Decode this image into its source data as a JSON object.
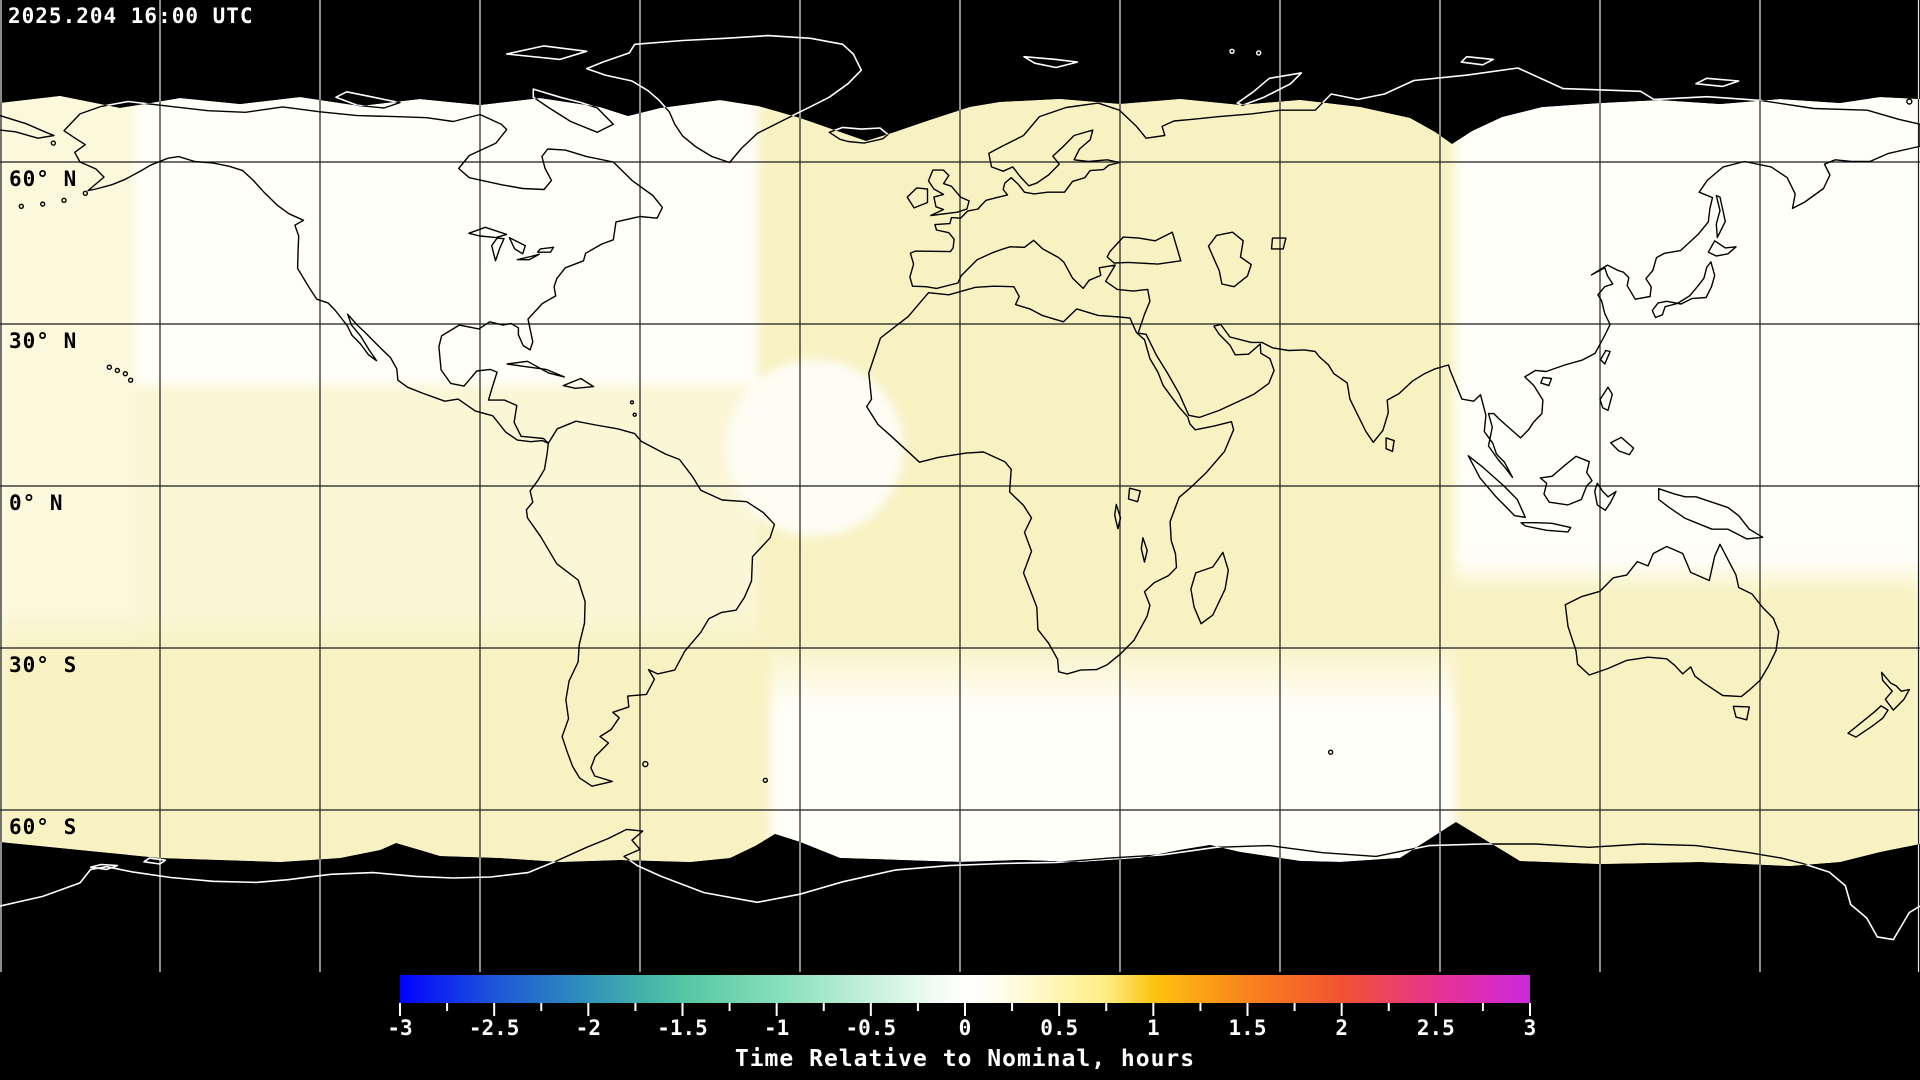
{
  "header": {
    "timestamp": "2025.204 16:00 UTC"
  },
  "map": {
    "projection": "equirectangular",
    "lat_labels": [
      {
        "lat": 60,
        "label": "60° N"
      },
      {
        "lat": 30,
        "label": "30° N"
      },
      {
        "lat": 0,
        "label": "0° N"
      },
      {
        "lat": -30,
        "label": "30° S"
      },
      {
        "lat": -60,
        "label": "60° S"
      }
    ],
    "grid": {
      "lon_step_deg": 30,
      "lat_step_deg": 30
    },
    "colors": {
      "background": "#000000",
      "data_base": "#fffef9",
      "swath_cream": "#f8f2c3",
      "swath_light": "#faf6d6",
      "left_strip": "#fbf8dc",
      "blob_white": "#fefdf4",
      "grid_on_data": "#1c1c1c",
      "grid_on_black": "#e8e8e8",
      "coast_on_data": "#000000",
      "coast_on_black": "#ffffff"
    }
  },
  "colorbar": {
    "title": "Time Relative to Nominal, hours",
    "min": -3,
    "max": 3,
    "major_tick_step": 0.5,
    "minor_tick_step": 0.25,
    "major_tick_labels": [
      "-3",
      "-2.5",
      "-2",
      "-1.5",
      "-1",
      "-0.5",
      "0",
      "0.5",
      "1",
      "1.5",
      "2",
      "2.5",
      "3"
    ],
    "gradient": [
      [
        0.0,
        "#0202fd"
      ],
      [
        0.083,
        "#1d55da"
      ],
      [
        0.167,
        "#2f93b8"
      ],
      [
        0.25,
        "#54c6a2"
      ],
      [
        0.333,
        "#85debb"
      ],
      [
        0.417,
        "#c6f1da"
      ],
      [
        0.47,
        "#eefbf2"
      ],
      [
        0.5,
        "#ffffff"
      ],
      [
        0.53,
        "#fffdee"
      ],
      [
        0.583,
        "#fff6b2"
      ],
      [
        0.625,
        "#ffec83"
      ],
      [
        0.667,
        "#fcc30f"
      ],
      [
        0.75,
        "#f8831c"
      ],
      [
        0.833,
        "#f25331"
      ],
      [
        0.917,
        "#e73390"
      ],
      [
        0.96,
        "#dc2cba"
      ],
      [
        1.0,
        "#ca29dc"
      ]
    ]
  }
}
